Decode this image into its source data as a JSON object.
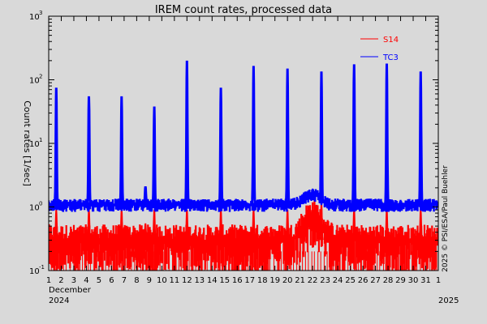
{
  "chart_data": {
    "type": "line",
    "title": "IREM count rates, processed data",
    "ylabel": "Count rates [1/sec]",
    "y_scale": "log",
    "ylim": [
      0.1,
      1000
    ],
    "y_ticks": [
      {
        "value": 0.1,
        "base": "10",
        "exp": "-1"
      },
      {
        "value": 1,
        "base": "10",
        "exp": "0"
      },
      {
        "value": 10,
        "base": "10",
        "exp": "1"
      },
      {
        "value": 100,
        "base": "10",
        "exp": "2"
      },
      {
        "value": 1000,
        "base": "10",
        "exp": "3"
      }
    ],
    "xlim": [
      1,
      32
    ],
    "x_tick_labels": [
      "1",
      "2",
      "3",
      "4",
      "5",
      "6",
      "7",
      "8",
      "9",
      "10",
      "11",
      "12",
      "13",
      "14",
      "15",
      "16",
      "17",
      "18",
      "19",
      "20",
      "21",
      "22",
      "23",
      "24",
      "25",
      "26",
      "27",
      "28",
      "29",
      "30",
      "31",
      "1"
    ],
    "x_month_label": "December",
    "x_year_label": "2024",
    "x_year_label_right": "2025",
    "credit": "2025 © PSI/ESA/Paul Buehler",
    "grid": false,
    "legend_placement": "top-right",
    "series": [
      {
        "name": "S14",
        "color": "#ff0000",
        "baseline": 0.3,
        "spike_peaks": [
          {
            "x": 1.6,
            "y": 0.9
          },
          {
            "x": 4.2,
            "y": 0.9
          },
          {
            "x": 6.8,
            "y": 0.9
          },
          {
            "x": 8.7,
            "y": 0.55
          },
          {
            "x": 9.4,
            "y": 0.9
          },
          {
            "x": 12.0,
            "y": 0.9
          },
          {
            "x": 14.7,
            "y": 0.9
          },
          {
            "x": 17.3,
            "y": 0.9
          },
          {
            "x": 20.0,
            "y": 0.9
          },
          {
            "x": 22.7,
            "y": 1.1
          },
          {
            "x": 25.3,
            "y": 0.9
          },
          {
            "x": 27.9,
            "y": 0.9
          },
          {
            "x": 30.6,
            "y": 0.9
          }
        ],
        "bump": {
          "x": 22.0,
          "peak": 0.75
        }
      },
      {
        "name": "TC3",
        "color": "#0000ff",
        "baseline": 1.1,
        "spike_peaks": [
          {
            "x": 1.6,
            "y": 75
          },
          {
            "x": 4.2,
            "y": 55
          },
          {
            "x": 6.8,
            "y": 55
          },
          {
            "x": 8.7,
            "y": 2.1
          },
          {
            "x": 9.4,
            "y": 38
          },
          {
            "x": 12.0,
            "y": 200
          },
          {
            "x": 14.7,
            "y": 75
          },
          {
            "x": 17.3,
            "y": 165
          },
          {
            "x": 20.0,
            "y": 150
          },
          {
            "x": 22.7,
            "y": 135
          },
          {
            "x": 25.3,
            "y": 175
          },
          {
            "x": 27.9,
            "y": 180
          },
          {
            "x": 30.6,
            "y": 135
          }
        ],
        "bump": {
          "x": 22.0,
          "peak": 1.6
        }
      }
    ]
  }
}
